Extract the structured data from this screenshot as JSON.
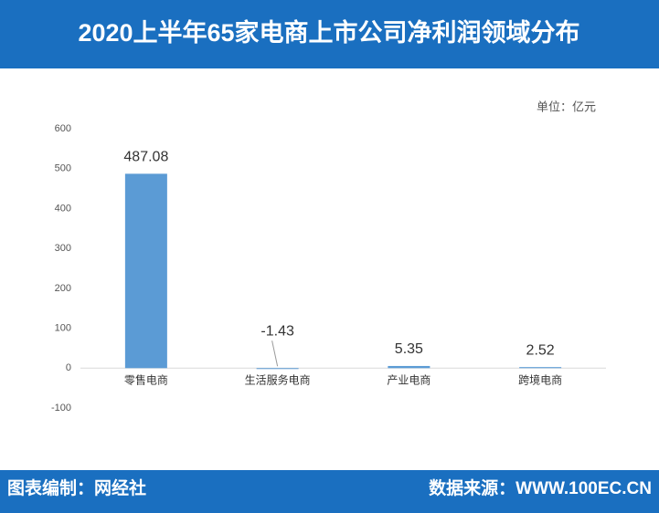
{
  "chart_data": {
    "type": "bar",
    "title": "2020上半年65家电商上市公司净利润领域分布",
    "unit": "单位：亿元",
    "categories": [
      "零售电商",
      "生活服务电商",
      "产业电商",
      "跨境电商"
    ],
    "values": [
      487.08,
      -1.43,
      5.35,
      2.52
    ],
    "color": "#5b9bd5",
    "ylim": [
      -100,
      600
    ],
    "yticks": [
      -100,
      0,
      100,
      200,
      300,
      400,
      500,
      600
    ],
    "grid": false,
    "footer_left": "图表编制：网经社",
    "footer_right": "数据来源：WWW.100EC.CN"
  }
}
